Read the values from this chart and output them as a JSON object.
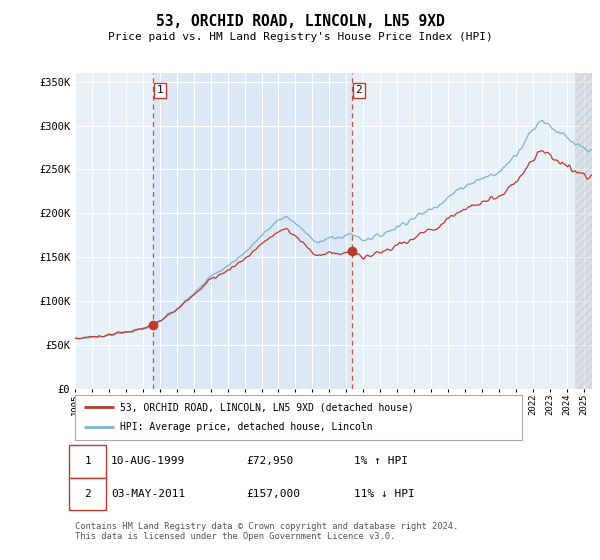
{
  "title": "53, ORCHID ROAD, LINCOLN, LN5 9XD",
  "subtitle": "Price paid vs. HM Land Registry's House Price Index (HPI)",
  "ylim": [
    0,
    360000
  ],
  "yticks": [
    0,
    50000,
    100000,
    150000,
    200000,
    250000,
    300000,
    350000
  ],
  "ytick_labels": [
    "£0",
    "£50K",
    "£100K",
    "£150K",
    "£200K",
    "£250K",
    "£300K",
    "£350K"
  ],
  "hpi_color": "#7ab4d8",
  "price_color": "#c0392b",
  "vline_color": "#c0392b",
  "background_color": "#dce8f5",
  "background_right_color": "#f0f5fb",
  "legend_label_price": "53, ORCHID ROAD, LINCOLN, LN5 9XD (detached house)",
  "legend_label_hpi": "HPI: Average price, detached house, Lincoln",
  "transaction1_label": "1",
  "transaction1_date": "10-AUG-1999",
  "transaction1_price": "£72,950",
  "transaction1_hpi": "1% ↑ HPI",
  "transaction1_year": 1999.6,
  "transaction1_value": 72950,
  "transaction2_label": "2",
  "transaction2_date": "03-MAY-2011",
  "transaction2_price": "£157,000",
  "transaction2_hpi": "11% ↓ HPI",
  "transaction2_year": 2011.33,
  "transaction2_value": 157000,
  "footer": "Contains HM Land Registry data © Crown copyright and database right 2024.\nThis data is licensed under the Open Government Licence v3.0.",
  "xmin": 1995.0,
  "xmax": 2025.5
}
